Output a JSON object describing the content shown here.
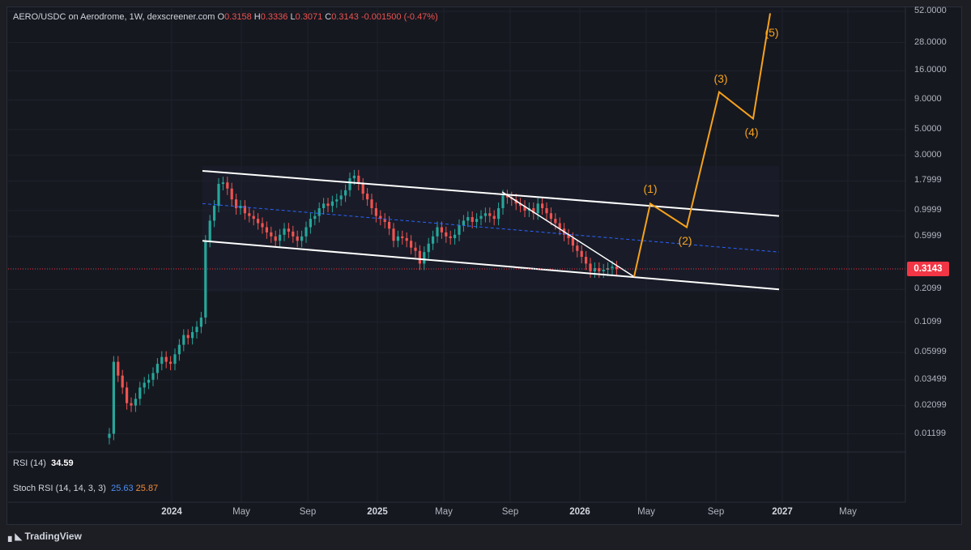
{
  "legend": {
    "symbol": "AERO/USDC on Aerodrome, 1W, dexscreener.com",
    "o_label": "O",
    "o_value": "0.3158",
    "h_label": "H",
    "h_value": "0.3336",
    "l_label": "L",
    "l_value": "0.3071",
    "c_label": "C",
    "c_value": "0.3143",
    "change": "-0.001500 (-0.47%)"
  },
  "last_price": "0.3143",
  "y_axis_labels": [
    "52.0000",
    "28.0000",
    "16.0000",
    "9.0000",
    "5.0000",
    "3.0000",
    "1.7999",
    "0.9999",
    "0.5999",
    "0.2099",
    "0.1099",
    "0.05999",
    "0.03499",
    "0.02099",
    "0.01199"
  ],
  "x_axis_labels": [
    {
      "text": "2024",
      "bold": true
    },
    {
      "text": "May",
      "bold": false
    },
    {
      "text": "Sep",
      "bold": false
    },
    {
      "text": "2025",
      "bold": true
    },
    {
      "text": "May",
      "bold": false
    },
    {
      "text": "Sep",
      "bold": false
    },
    {
      "text": "2026",
      "bold": true
    },
    {
      "text": "May",
      "bold": false
    },
    {
      "text": "Sep",
      "bold": false
    },
    {
      "text": "2027",
      "bold": true
    },
    {
      "text": "May",
      "bold": false
    }
  ],
  "rsi": {
    "label": "RSI (14)",
    "value": "34.59"
  },
  "stoch_rsi": {
    "label": "Stoch RSI (14, 14, 3, 3)",
    "k": "25.63",
    "d": "25.87"
  },
  "waves": [
    "(1)",
    "(2)",
    "(3)",
    "(4)",
    "(5)"
  ],
  "brand": "TradingView",
  "colors": {
    "up": "#26a69a",
    "down": "#ef5350",
    "wave": "#f7a21b",
    "channel": "#ffffff",
    "midline": "#2962ff",
    "price_line": "#f23645",
    "background": "#161820"
  },
  "chart_data": {
    "type": "candlestick",
    "y_scale": "log",
    "projection_wave_prices": [
      0.27,
      1.15,
      0.72,
      10.5,
      6.2,
      50.0
    ],
    "channel_upper_prices": [
      2.2,
      0.9
    ],
    "channel_lower_prices": [
      0.55,
      0.21
    ],
    "closes": [
      0.012,
      0.05,
      0.038,
      0.03,
      0.022,
      0.021,
      0.024,
      0.03,
      0.033,
      0.035,
      0.04,
      0.048,
      0.055,
      0.05,
      0.048,
      0.058,
      0.07,
      0.085,
      0.08,
      0.09,
      0.1,
      0.12,
      0.55,
      0.82,
      1.1,
      1.7,
      1.75,
      1.55,
      1.25,
      1.05,
      1.1,
      0.95,
      0.9,
      0.85,
      0.78,
      0.72,
      0.65,
      0.6,
      0.55,
      0.62,
      0.7,
      0.66,
      0.6,
      0.55,
      0.6,
      0.72,
      0.85,
      0.9,
      1.05,
      1.15,
      1.1,
      1.2,
      1.25,
      1.35,
      1.5,
      1.9,
      2.0,
      1.7,
      1.4,
      1.25,
      1.05,
      0.9,
      0.85,
      0.8,
      0.7,
      0.55,
      0.6,
      0.58,
      0.55,
      0.48,
      0.45,
      0.35,
      0.44,
      0.52,
      0.6,
      0.72,
      0.65,
      0.6,
      0.58,
      0.62,
      0.75,
      0.82,
      0.88,
      0.8,
      0.85,
      0.9,
      0.95,
      0.9,
      0.85,
      1.05,
      1.35,
      1.3,
      1.25,
      1.15,
      1.1,
      1.0,
      1.05,
      0.95,
      1.15,
      1.05,
      0.95,
      0.85,
      0.78,
      0.7,
      0.62,
      0.58,
      0.5,
      0.45,
      0.4,
      0.35,
      0.3,
      0.32,
      0.3,
      0.31,
      0.32,
      0.33,
      0.3143
    ]
  }
}
